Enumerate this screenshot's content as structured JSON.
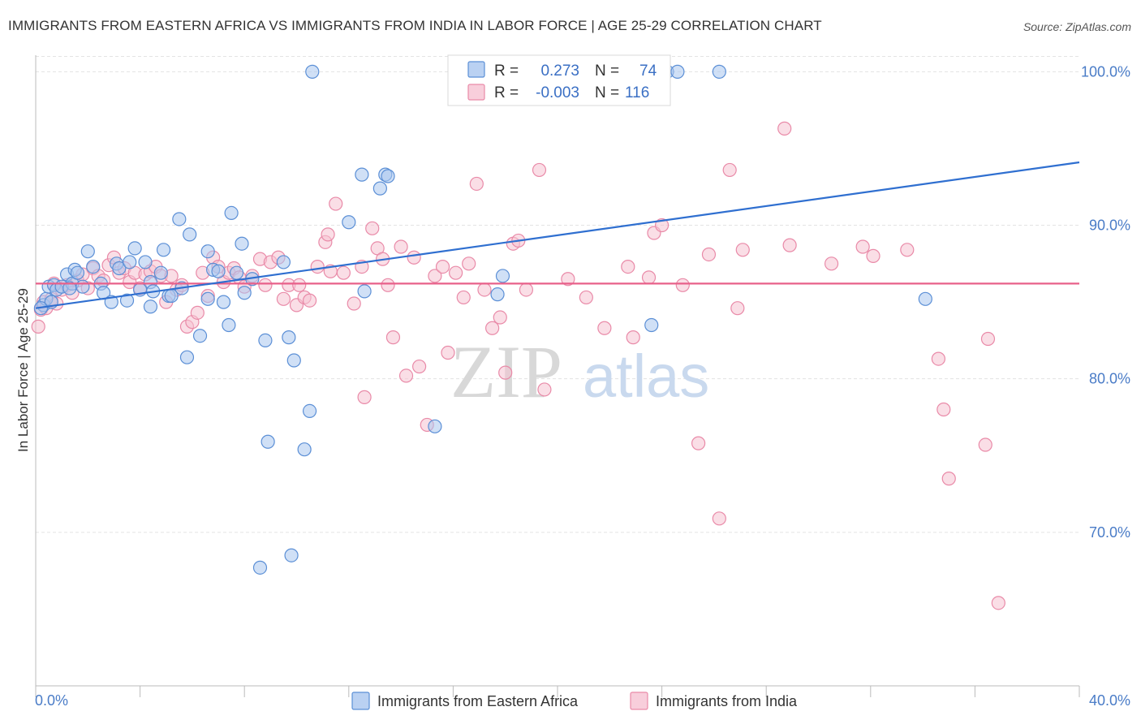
{
  "title": "IMMIGRANTS FROM EASTERN AFRICA VS IMMIGRANTS FROM INDIA IN LABOR FORCE | AGE 25-29 CORRELATION CHART",
  "source": "Source: ZipAtlas.com",
  "watermark": {
    "zip": "ZIP",
    "atlas": "atlas"
  },
  "colors": {
    "blue_fill": "#a9c6ef",
    "blue_stroke": "#5b8fd6",
    "blue_line": "#2f6fd0",
    "pink_fill": "#f6c2d2",
    "pink_stroke": "#e98aa8",
    "pink_line": "#e8608a",
    "tick_text": "#4a7cc7",
    "grid": "#e3e3e3"
  },
  "legend": {
    "rows": [
      {
        "r_label": "R =",
        "r_value": "0.273",
        "n_label": "N =",
        "n_value": "74"
      },
      {
        "r_label": "R =",
        "r_value": "-0.003",
        "n_label": "N =",
        "n_value": "116"
      }
    ]
  },
  "chart_data": {
    "type": "scatter",
    "title": "IMMIGRANTS FROM EASTERN AFRICA VS IMMIGRANTS FROM INDIA IN LABOR FORCE | AGE 25-29 CORRELATION CHART",
    "xlabel": "",
    "ylabel": "In Labor Force | Age 25-29",
    "xlim": [
      0,
      40
    ],
    "ylim": [
      60,
      101.5
    ],
    "x_tick_labels": [
      "0.0%",
      "40.0%"
    ],
    "y_ticks": [
      70,
      80,
      90,
      100
    ],
    "y_tick_labels": [
      "70.0%",
      "80.0%",
      "90.0%",
      "100.0%"
    ],
    "grid": true,
    "legend_position": "top-center",
    "series": [
      {
        "name": "Immigrants from Eastern Africa",
        "trend": {
          "x": [
            0,
            40
          ],
          "y": [
            84.6,
            94.1
          ]
        },
        "points": [
          [
            0.3,
            84.8
          ],
          [
            0.4,
            85.2
          ],
          [
            0.5,
            86.0
          ],
          [
            0.6,
            85.0
          ],
          [
            0.7,
            86.1
          ],
          [
            0.8,
            85.8
          ],
          [
            1.0,
            86.0
          ],
          [
            1.2,
            86.8
          ],
          [
            1.4,
            86.2
          ],
          [
            1.5,
            87.1
          ],
          [
            1.6,
            86.9
          ],
          [
            1.8,
            86.0
          ],
          [
            2.0,
            88.3
          ],
          [
            2.2,
            87.3
          ],
          [
            2.5,
            86.2
          ],
          [
            2.6,
            85.6
          ],
          [
            2.9,
            85.0
          ],
          [
            3.1,
            87.5
          ],
          [
            3.2,
            87.2
          ],
          [
            3.5,
            85.1
          ],
          [
            3.6,
            87.6
          ],
          [
            3.8,
            88.5
          ],
          [
            4.0,
            85.8
          ],
          [
            4.2,
            87.6
          ],
          [
            4.4,
            86.3
          ],
          [
            4.4,
            84.7
          ],
          [
            4.5,
            85.7
          ],
          [
            4.8,
            86.9
          ],
          [
            4.9,
            88.4
          ],
          [
            5.1,
            85.4
          ],
          [
            5.2,
            85.4
          ],
          [
            5.5,
            90.4
          ],
          [
            5.6,
            85.9
          ],
          [
            5.8,
            81.4
          ],
          [
            5.9,
            89.4
          ],
          [
            6.3,
            82.8
          ],
          [
            6.6,
            88.3
          ],
          [
            6.6,
            85.2
          ],
          [
            6.8,
            87.1
          ],
          [
            7.0,
            87.0
          ],
          [
            7.2,
            85.0
          ],
          [
            7.4,
            83.5
          ],
          [
            7.5,
            90.8
          ],
          [
            7.7,
            86.9
          ],
          [
            7.9,
            88.8
          ],
          [
            8.0,
            85.6
          ],
          [
            8.3,
            86.5
          ],
          [
            8.6,
            67.7
          ],
          [
            8.8,
            82.5
          ],
          [
            8.9,
            75.9
          ],
          [
            9.5,
            87.6
          ],
          [
            9.7,
            82.7
          ],
          [
            9.8,
            68.5
          ],
          [
            9.9,
            81.2
          ],
          [
            10.3,
            75.4
          ],
          [
            10.5,
            77.9
          ],
          [
            10.6,
            100.0
          ],
          [
            12.0,
            90.2
          ],
          [
            12.5,
            93.3
          ],
          [
            12.6,
            85.7
          ],
          [
            13.2,
            92.4
          ],
          [
            13.4,
            93.3
          ],
          [
            13.5,
            93.2
          ],
          [
            15.3,
            76.9
          ],
          [
            17.7,
            85.5
          ],
          [
            17.9,
            86.7
          ],
          [
            18.0,
            100.0
          ],
          [
            23.6,
            83.5
          ],
          [
            24.2,
            100.0
          ],
          [
            24.6,
            100.0
          ],
          [
            26.2,
            100.0
          ],
          [
            34.1,
            85.2
          ],
          [
            0.2,
            84.6
          ],
          [
            1.3,
            85.9
          ]
        ]
      },
      {
        "name": "Immigrants from India",
        "trend": {
          "x": [
            0,
            40
          ],
          "y": [
            86.2,
            86.2
          ]
        },
        "points": [
          [
            0.1,
            83.4
          ],
          [
            0.2,
            84.5
          ],
          [
            0.3,
            85.0
          ],
          [
            0.4,
            84.6
          ],
          [
            0.6,
            85.2
          ],
          [
            0.7,
            86.2
          ],
          [
            0.8,
            84.9
          ],
          [
            1.0,
            85.8
          ],
          [
            1.2,
            86.1
          ],
          [
            1.4,
            85.6
          ],
          [
            1.6,
            86.4
          ],
          [
            1.8,
            86.8
          ],
          [
            2.0,
            85.9
          ],
          [
            2.2,
            87.2
          ],
          [
            2.4,
            86.7
          ],
          [
            2.6,
            86.4
          ],
          [
            2.8,
            87.4
          ],
          [
            3.0,
            87.9
          ],
          [
            3.2,
            86.9
          ],
          [
            3.4,
            87.2
          ],
          [
            3.6,
            86.3
          ],
          [
            3.8,
            86.9
          ],
          [
            4.0,
            85.9
          ],
          [
            4.2,
            86.8
          ],
          [
            4.4,
            87.0
          ],
          [
            4.6,
            87.3
          ],
          [
            4.8,
            86.7
          ],
          [
            5.0,
            85.0
          ],
          [
            5.2,
            86.7
          ],
          [
            5.4,
            85.8
          ],
          [
            5.6,
            86.1
          ],
          [
            5.8,
            83.4
          ],
          [
            6.0,
            83.7
          ],
          [
            6.2,
            84.3
          ],
          [
            6.4,
            86.9
          ],
          [
            6.6,
            85.4
          ],
          [
            6.8,
            87.9
          ],
          [
            7.0,
            87.3
          ],
          [
            7.2,
            86.3
          ],
          [
            7.4,
            86.9
          ],
          [
            7.6,
            87.2
          ],
          [
            7.8,
            86.6
          ],
          [
            8.0,
            86.0
          ],
          [
            8.3,
            86.7
          ],
          [
            8.6,
            87.8
          ],
          [
            8.8,
            86.1
          ],
          [
            9.0,
            87.6
          ],
          [
            9.3,
            87.9
          ],
          [
            9.5,
            85.2
          ],
          [
            9.7,
            86.1
          ],
          [
            10.0,
            84.8
          ],
          [
            10.1,
            86.1
          ],
          [
            10.3,
            85.3
          ],
          [
            10.5,
            85.1
          ],
          [
            10.8,
            87.3
          ],
          [
            11.1,
            88.9
          ],
          [
            11.2,
            89.4
          ],
          [
            11.3,
            87.0
          ],
          [
            11.5,
            91.4
          ],
          [
            11.8,
            86.9
          ],
          [
            12.2,
            84.9
          ],
          [
            12.5,
            87.3
          ],
          [
            12.6,
            78.8
          ],
          [
            12.9,
            89.8
          ],
          [
            13.1,
            88.5
          ],
          [
            13.3,
            87.8
          ],
          [
            13.5,
            86.1
          ],
          [
            13.7,
            82.7
          ],
          [
            14.0,
            88.6
          ],
          [
            14.2,
            80.2
          ],
          [
            14.5,
            87.9
          ],
          [
            14.7,
            80.8
          ],
          [
            15.0,
            77.0
          ],
          [
            15.3,
            86.7
          ],
          [
            15.6,
            87.3
          ],
          [
            15.8,
            81.7
          ],
          [
            16.1,
            86.9
          ],
          [
            16.4,
            85.3
          ],
          [
            16.6,
            87.5
          ],
          [
            16.9,
            92.7
          ],
          [
            17.2,
            85.8
          ],
          [
            17.5,
            83.3
          ],
          [
            17.8,
            84.0
          ],
          [
            18.0,
            80.4
          ],
          [
            18.3,
            88.8
          ],
          [
            18.5,
            89.0
          ],
          [
            18.8,
            85.8
          ],
          [
            19.3,
            93.6
          ],
          [
            19.5,
            79.3
          ],
          [
            20.4,
            86.5
          ],
          [
            21.1,
            85.3
          ],
          [
            21.8,
            83.3
          ],
          [
            22.7,
            87.3
          ],
          [
            22.9,
            82.7
          ],
          [
            23.5,
            86.6
          ],
          [
            23.7,
            89.5
          ],
          [
            24.0,
            90.0
          ],
          [
            24.8,
            86.1
          ],
          [
            25.4,
            75.8
          ],
          [
            25.8,
            88.1
          ],
          [
            26.2,
            70.9
          ],
          [
            26.6,
            93.6
          ],
          [
            26.9,
            84.6
          ],
          [
            27.1,
            88.4
          ],
          [
            28.7,
            96.3
          ],
          [
            28.9,
            88.7
          ],
          [
            30.5,
            87.5
          ],
          [
            31.7,
            88.6
          ],
          [
            32.1,
            88.0
          ],
          [
            33.4,
            88.4
          ],
          [
            34.6,
            81.3
          ],
          [
            34.8,
            78.0
          ],
          [
            35.0,
            73.5
          ],
          [
            36.4,
            75.7
          ],
          [
            36.5,
            82.6
          ],
          [
            36.9,
            65.4
          ]
        ]
      }
    ]
  },
  "bottom_legend": [
    {
      "label": "Immigrants from Eastern Africa"
    },
    {
      "label": "Immigrants from India"
    }
  ]
}
